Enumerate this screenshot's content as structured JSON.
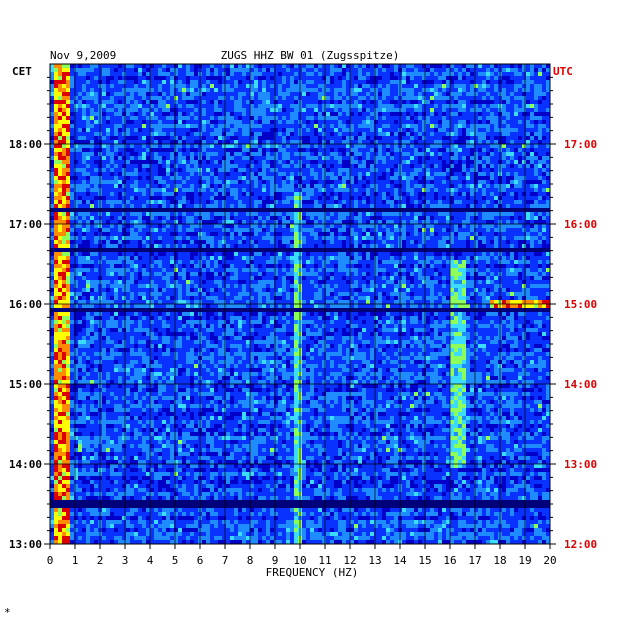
{
  "header": {
    "date": "Nov 9,2009",
    "station": "ZUGS HHZ BW 01 (Zugsspitze)"
  },
  "footer_mark": "*",
  "chart_data": {
    "type": "heatmap",
    "title": "ZUGS HHZ BW 01 (Zugsspitze)",
    "xlabel": "FREQUENCY (HZ)",
    "left_axis_label": "CET",
    "right_axis_label": "UTC",
    "xlim": [
      0,
      20
    ],
    "x_ticks": [
      "0",
      "1",
      "2",
      "3",
      "4",
      "5",
      "6",
      "7",
      "8",
      "9",
      "10",
      "11",
      "12",
      "13",
      "14",
      "15",
      "16",
      "17",
      "18",
      "19",
      "20"
    ],
    "left_ticks": [
      "18:00",
      "17:00",
      "16:00",
      "15:00",
      "14:00",
      "13:00"
    ],
    "right_ticks": [
      "17:00",
      "16:00",
      "15:00",
      "14:00",
      "13:00",
      "12:00"
    ],
    "time_range_utc": [
      "12:00",
      "18:00"
    ],
    "grid": true,
    "colormap": [
      "#00007a",
      "#0000c8",
      "#0a32ff",
      "#1e8cff",
      "#3cdcff",
      "#8cff5a",
      "#ffff00",
      "#ff8c00",
      "#dc0000"
    ],
    "features": [
      {
        "label": "microseism band",
        "freq_hz": [
          0.1,
          0.8
        ],
        "time_utc": [
          "12:00",
          "18:00"
        ],
        "level": "high"
      },
      {
        "label": "line",
        "freq_hz": [
          9.7,
          10.1
        ],
        "time_utc": [
          "12:00",
          "16:20"
        ],
        "level": "medium"
      },
      {
        "label": "line",
        "freq_hz": [
          16.0,
          16.6
        ],
        "time_utc": [
          "13:00",
          "15:30"
        ],
        "level": "medium"
      },
      {
        "label": "line",
        "freq_hz": [
          17.6,
          20.0
        ],
        "time_utc": [
          "15:00",
          "15:00"
        ],
        "level": "high"
      }
    ],
    "quiet_bands_utc": [
      "12:30",
      "14:55",
      "15:40",
      "16:10"
    ]
  }
}
